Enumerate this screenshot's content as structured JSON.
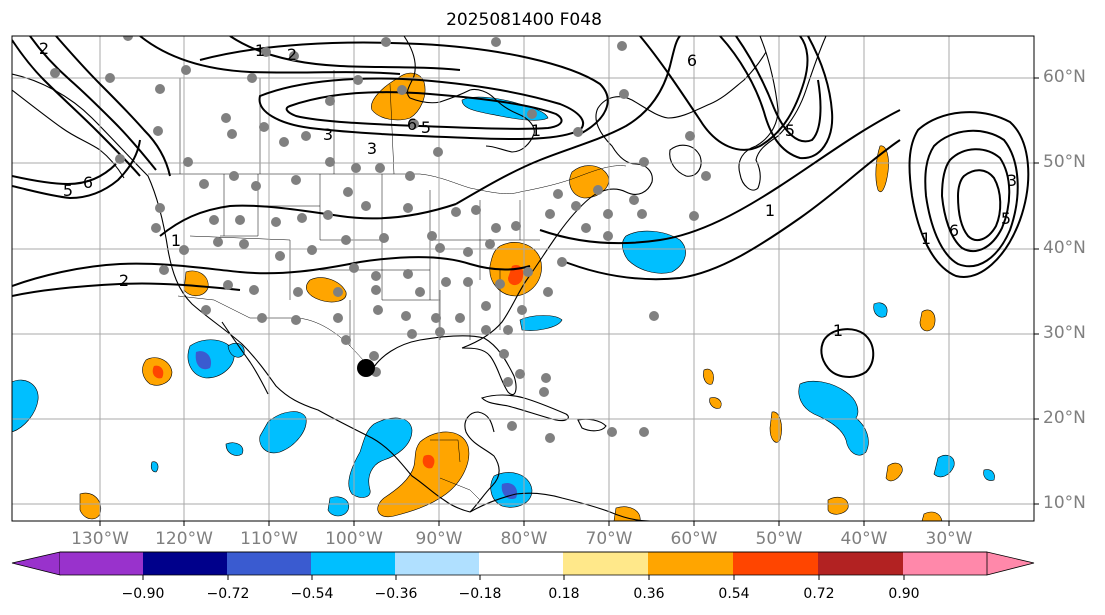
{
  "title": "2025081400 F048",
  "lat_labels": [
    "60°N",
    "50°N",
    "40°N",
    "30°N",
    "20°N",
    "10°N"
  ],
  "lon_labels": [
    "130°W",
    "120°W",
    "110°W",
    "100°W",
    "90°W",
    "80°W",
    "70°W",
    "60°W",
    "50°W",
    "40°W",
    "30°W"
  ],
  "contour_labels": [
    "1",
    "2",
    "3",
    "5",
    "6",
    "1",
    "2",
    "3",
    "6",
    "5",
    "1",
    "2",
    "1",
    "3",
    "5",
    "6",
    "1",
    "1",
    "5",
    "6"
  ],
  "colorbar": {
    "ticks": [
      "−0.90",
      "−0.72",
      "−0.54",
      "−0.36",
      "−0.18",
      "0.18",
      "0.36",
      "0.54",
      "0.72",
      "0.90"
    ],
    "colors": [
      "#9932cc",
      "#00008b",
      "#3a5bd0",
      "#00bfff",
      "#b0e0ff",
      "#ffffff",
      "#ffe88a",
      "#ffa500",
      "#ff4500",
      "#b22222",
      "#ff88aa"
    ]
  },
  "colors": {
    "land_line": "#000000",
    "grid": "#a8a8a8",
    "station_dot": "#808080"
  }
}
